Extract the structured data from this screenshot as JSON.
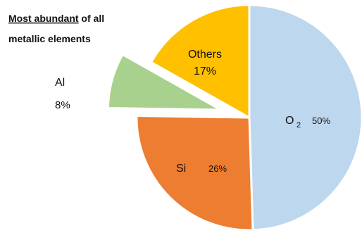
{
  "chart_data": {
    "type": "pie",
    "annotation": {
      "line1_underlined": "Most abundant",
      "line1_rest": " of all",
      "line2": "metallic elements"
    },
    "slices": [
      {
        "name": "O",
        "subscript": "2",
        "value": 50,
        "value_label": "50%",
        "color": "#BDD7EE",
        "exploded": false
      },
      {
        "name": "Si",
        "value": 26,
        "value_label": "26%",
        "color": "#ED7D31",
        "exploded": false
      },
      {
        "name": "Al",
        "value": 8,
        "value_label": "8%",
        "color": "#A9D18E",
        "exploded": true
      },
      {
        "name": "Others",
        "value": 17,
        "value_label": "17%",
        "color": "#FFC000",
        "exploded": false
      }
    ],
    "start_angle_deg": 0,
    "direction": "clockwise",
    "stroke_color": "#ffffff"
  }
}
